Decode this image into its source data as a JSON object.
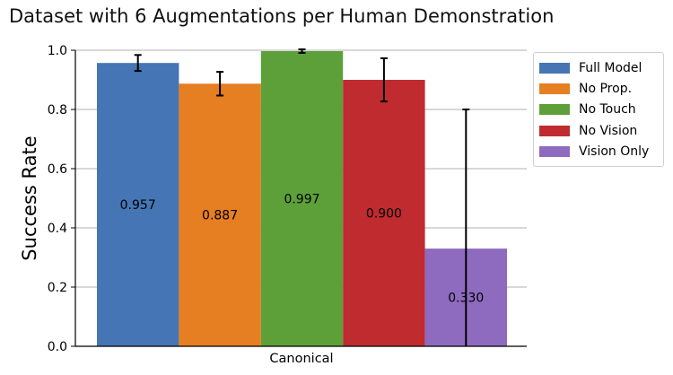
{
  "chart_data": {
    "type": "bar",
    "title": "Dataset with 6 Augmentations per Human Demonstration",
    "xlabel": "",
    "ylabel": "Success Rate",
    "categories": [
      "Canonical"
    ],
    "ylim": [
      0,
      1.0
    ],
    "yticks": [
      "0.0",
      "0.2",
      "0.4",
      "0.6",
      "0.8",
      "1.0"
    ],
    "grid": "horizontal",
    "legend_position": "outside-top-right",
    "series": [
      {
        "name": "Full Model",
        "values": [
          0.957
        ],
        "error": [
          0.027
        ],
        "label": "0.957",
        "color": "#4575b4"
      },
      {
        "name": "No Prop.",
        "values": [
          0.887
        ],
        "error": [
          0.04
        ],
        "label": "0.887",
        "color": "#e67e22"
      },
      {
        "name": "No Touch",
        "values": [
          0.997
        ],
        "error": [
          0.006
        ],
        "label": "0.997",
        "color": "#5da03a"
      },
      {
        "name": "No Vision",
        "values": [
          0.9
        ],
        "error": [
          0.073
        ],
        "label": "0.900",
        "color": "#bf2b2f"
      },
      {
        "name": "Vision Only",
        "values": [
          0.33
        ],
        "error": [
          0.47
        ],
        "label": "0.330",
        "color": "#8e6bbf"
      }
    ]
  }
}
